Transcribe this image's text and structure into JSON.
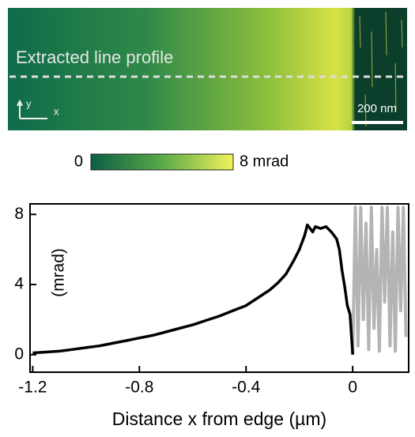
{
  "image_panel": {
    "label": "Extracted line profile",
    "axis_y": "y",
    "axis_x": "x",
    "scale_bar": "200 nm",
    "colorbar": {
      "ticks": [
        0,
        {
          "value": 8,
          "label": "8 mrad"
        }
      ],
      "lim": [
        0,
        8
      ]
    }
  },
  "chart_data": {
    "type": "line",
    "xlabel": "Distance x from edge (µm)",
    "ylabel": "(mrad)",
    "xlim": [
      -1.21,
      0.21
    ],
    "ylim": [
      -1,
      8.6
    ],
    "xticks": [
      -1.2,
      -0.8,
      -0.4,
      0
    ],
    "yticks": [
      0,
      4,
      8
    ],
    "series": [
      {
        "color": "#000000",
        "x": [
          -1.2,
          -1.15,
          -1.1,
          -1.05,
          -1.0,
          -0.95,
          -0.9,
          -0.85,
          -0.8,
          -0.75,
          -0.7,
          -0.65,
          -0.6,
          -0.55,
          -0.5,
          -0.45,
          -0.4,
          -0.37,
          -0.34,
          -0.31,
          -0.28,
          -0.25,
          -0.22,
          -0.2,
          -0.18,
          -0.17,
          -0.16,
          -0.15,
          -0.14,
          -0.12,
          -0.1,
          -0.08,
          -0.06,
          -0.05,
          -0.04,
          -0.03,
          -0.02,
          -0.01,
          0
        ],
        "values": [
          0.1,
          0.15,
          0.2,
          0.3,
          0.4,
          0.5,
          0.65,
          0.8,
          0.95,
          1.1,
          1.3,
          1.5,
          1.7,
          1.95,
          2.2,
          2.5,
          2.8,
          3.1,
          3.4,
          3.7,
          4.1,
          4.6,
          5.4,
          6.0,
          6.8,
          7.4,
          7.2,
          7.0,
          7.3,
          7.2,
          7.3,
          7.0,
          6.6,
          6.0,
          4.8,
          3.9,
          2.8,
          2.3,
          0
        ]
      },
      {
        "color": "#b4b4b4",
        "x": [
          0,
          0.01,
          0.02,
          0.03,
          0.04,
          0.05,
          0.06,
          0.07,
          0.08,
          0.09,
          0.1,
          0.11,
          0.12,
          0.13,
          0.14,
          0.15,
          0.16,
          0.17,
          0.18,
          0.19,
          0.2
        ],
        "values": [
          0,
          8.4,
          0.5,
          8.4,
          2.0,
          7.5,
          0.3,
          8.4,
          1.5,
          6.0,
          0.2,
          8.4,
          3.0,
          8.4,
          0.5,
          7.0,
          0.2,
          8.4,
          2.5,
          8.4,
          1.0
        ]
      }
    ]
  }
}
